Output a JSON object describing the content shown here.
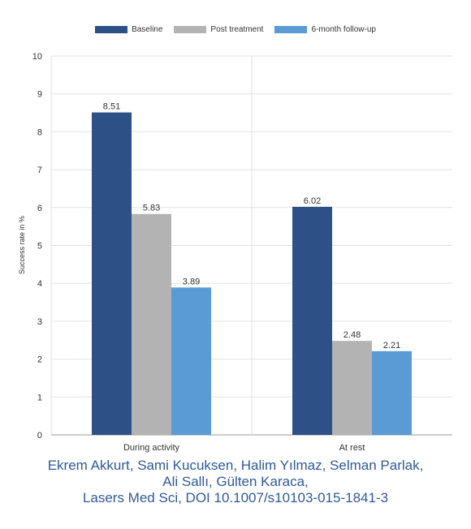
{
  "chart_data": {
    "type": "bar",
    "categories": [
      "During activity",
      "At rest"
    ],
    "series": [
      {
        "name": "Baseline",
        "values": [
          8.51,
          6.02
        ],
        "color": "#2d5087"
      },
      {
        "name": "Post treatment",
        "values": [
          5.83,
          2.48
        ],
        "color": "#b3b3b3"
      },
      {
        "name": "6-month follow-up",
        "values": [
          3.89,
          2.21
        ],
        "color": "#5b9bd5"
      }
    ],
    "ylabel": "Success rate in %",
    "xlabel": "",
    "ylim": [
      0,
      10
    ],
    "yticks": [
      0,
      1,
      2,
      3,
      4,
      5,
      6,
      7,
      8,
      9,
      10
    ],
    "grid": true,
    "legend_position": "top-center"
  },
  "credit": {
    "line1": "Ekrem Akkurt, Sami Kucuksen, Halim Yılmaz, Selman Parlak,",
    "line2": "Ali Sallı, Gülten Karaca,",
    "line3": "Lasers Med Sci, DOI 10.1007/s10103-015-1841-3"
  }
}
